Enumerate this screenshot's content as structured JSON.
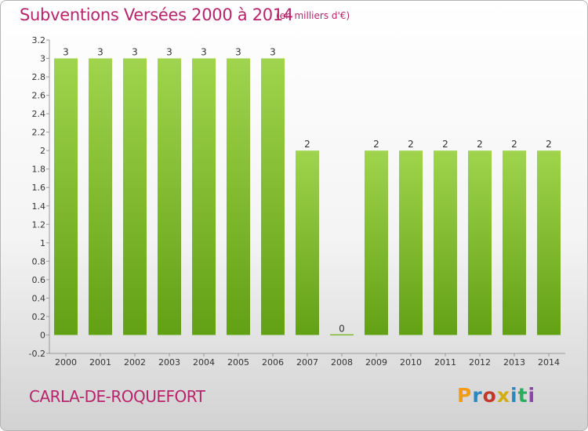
{
  "header": {
    "title": "Subventions Versées 2000 à 2014",
    "unit": "(en milliers d'€)"
  },
  "footer": {
    "commune": "CARLA-DE-ROQUEFORT",
    "logo_text": "Proxiti",
    "logo_colors": [
      "#f39c12",
      "#2e86c1",
      "#c0392b",
      "#d4ac0d",
      "#2e86c1",
      "#27ae60",
      "#8e44ad"
    ]
  },
  "colors": {
    "bar_top": "#a0d44e",
    "bar_bottom": "#62a014",
    "axis": "#999999",
    "tick_text": "#333333"
  },
  "chart_data": {
    "type": "bar",
    "categories": [
      "2000",
      "2001",
      "2002",
      "2003",
      "2004",
      "2005",
      "2006",
      "2007",
      "2008",
      "2009",
      "2010",
      "2011",
      "2012",
      "2013",
      "2014"
    ],
    "values": [
      3,
      3,
      3,
      3,
      3,
      3,
      3,
      2,
      0,
      2,
      2,
      2,
      2,
      2,
      2
    ],
    "data_labels": [
      "3",
      "3",
      "3",
      "3",
      "3",
      "3",
      "3",
      "2",
      "0",
      "2",
      "2",
      "2",
      "2",
      "2",
      "2"
    ],
    "y_ticks": [
      "-0.2",
      "0",
      "0.2",
      "0.4",
      "0.6",
      "0.8",
      "1",
      "1.2",
      "1.4",
      "1.6",
      "1.8",
      "2",
      "2.2",
      "2.4",
      "2.6",
      "2.8",
      "3",
      "3.2"
    ],
    "ylim": [
      -0.2,
      3.2
    ],
    "title": "Subventions Versées 2000 à 2014",
    "xlabel": "",
    "ylabel": "",
    "grid": false
  }
}
